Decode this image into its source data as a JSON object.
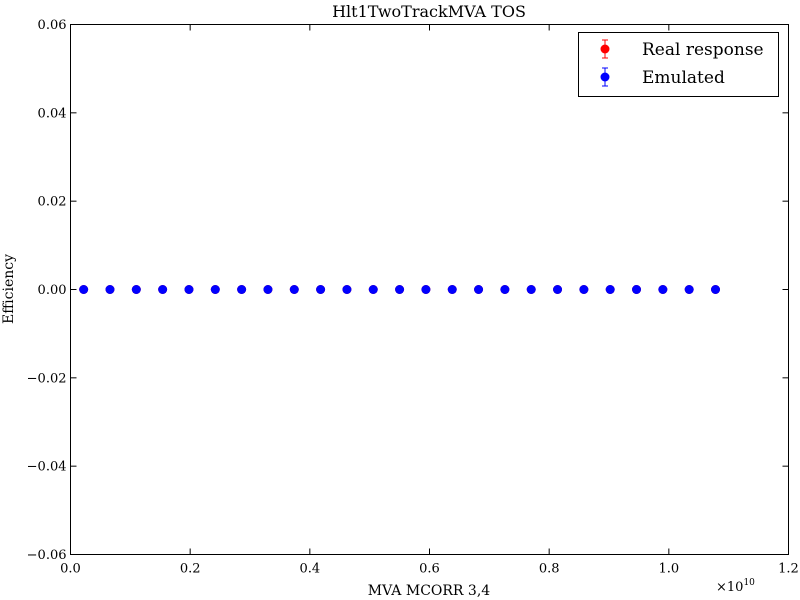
{
  "chart_data": {
    "type": "scatter",
    "title": "Hlt1TwoTrackMVA TOS",
    "xlabel": "MVA MCORR 3,4",
    "ylabel": "Efficiency",
    "x_multiplier": "×10",
    "x_multiplier_exp": "10",
    "xlim": [
      0.0,
      1.2
    ],
    "ylim": [
      -0.06,
      0.06
    ],
    "xticks": [
      0.0,
      0.2,
      0.4,
      0.6,
      0.8,
      1.0,
      1.2
    ],
    "xtick_labels": [
      "0.0",
      "0.2",
      "0.4",
      "0.6",
      "0.8",
      "1.0",
      "1.2"
    ],
    "yticks": [
      -0.06,
      -0.04,
      -0.02,
      0.0,
      0.02,
      0.04,
      0.06
    ],
    "ytick_labels": [
      "−0.06",
      "−0.04",
      "−0.02",
      "0.00",
      "0.02",
      "0.04",
      "0.06"
    ],
    "grid": false,
    "legend_position": "top-right",
    "series": [
      {
        "name": "Real response",
        "color": "#ff0000",
        "x": [
          0.022,
          0.066,
          0.11,
          0.154,
          0.198,
          0.242,
          0.286,
          0.33,
          0.374,
          0.418,
          0.462,
          0.506,
          0.55,
          0.594,
          0.638,
          0.682,
          0.726,
          0.77,
          0.814,
          0.858,
          0.902,
          0.946,
          0.99,
          1.034,
          1.078
        ],
        "y": [
          0,
          0,
          0,
          0,
          0,
          0,
          0,
          0,
          0,
          0,
          0,
          0,
          0,
          0,
          0,
          0,
          0,
          0,
          0,
          0,
          0,
          0,
          0,
          0,
          0
        ]
      },
      {
        "name": "Emulated",
        "color": "#0000ff",
        "x": [
          0.022,
          0.066,
          0.11,
          0.154,
          0.198,
          0.242,
          0.286,
          0.33,
          0.374,
          0.418,
          0.462,
          0.506,
          0.55,
          0.594,
          0.638,
          0.682,
          0.726,
          0.77,
          0.814,
          0.858,
          0.902,
          0.946,
          0.99,
          1.034,
          1.078
        ],
        "y": [
          0,
          0,
          0,
          0,
          0,
          0,
          0,
          0,
          0,
          0,
          0,
          0,
          0,
          0,
          0,
          0,
          0,
          0,
          0,
          0,
          0,
          0,
          0,
          0,
          0
        ]
      }
    ]
  }
}
